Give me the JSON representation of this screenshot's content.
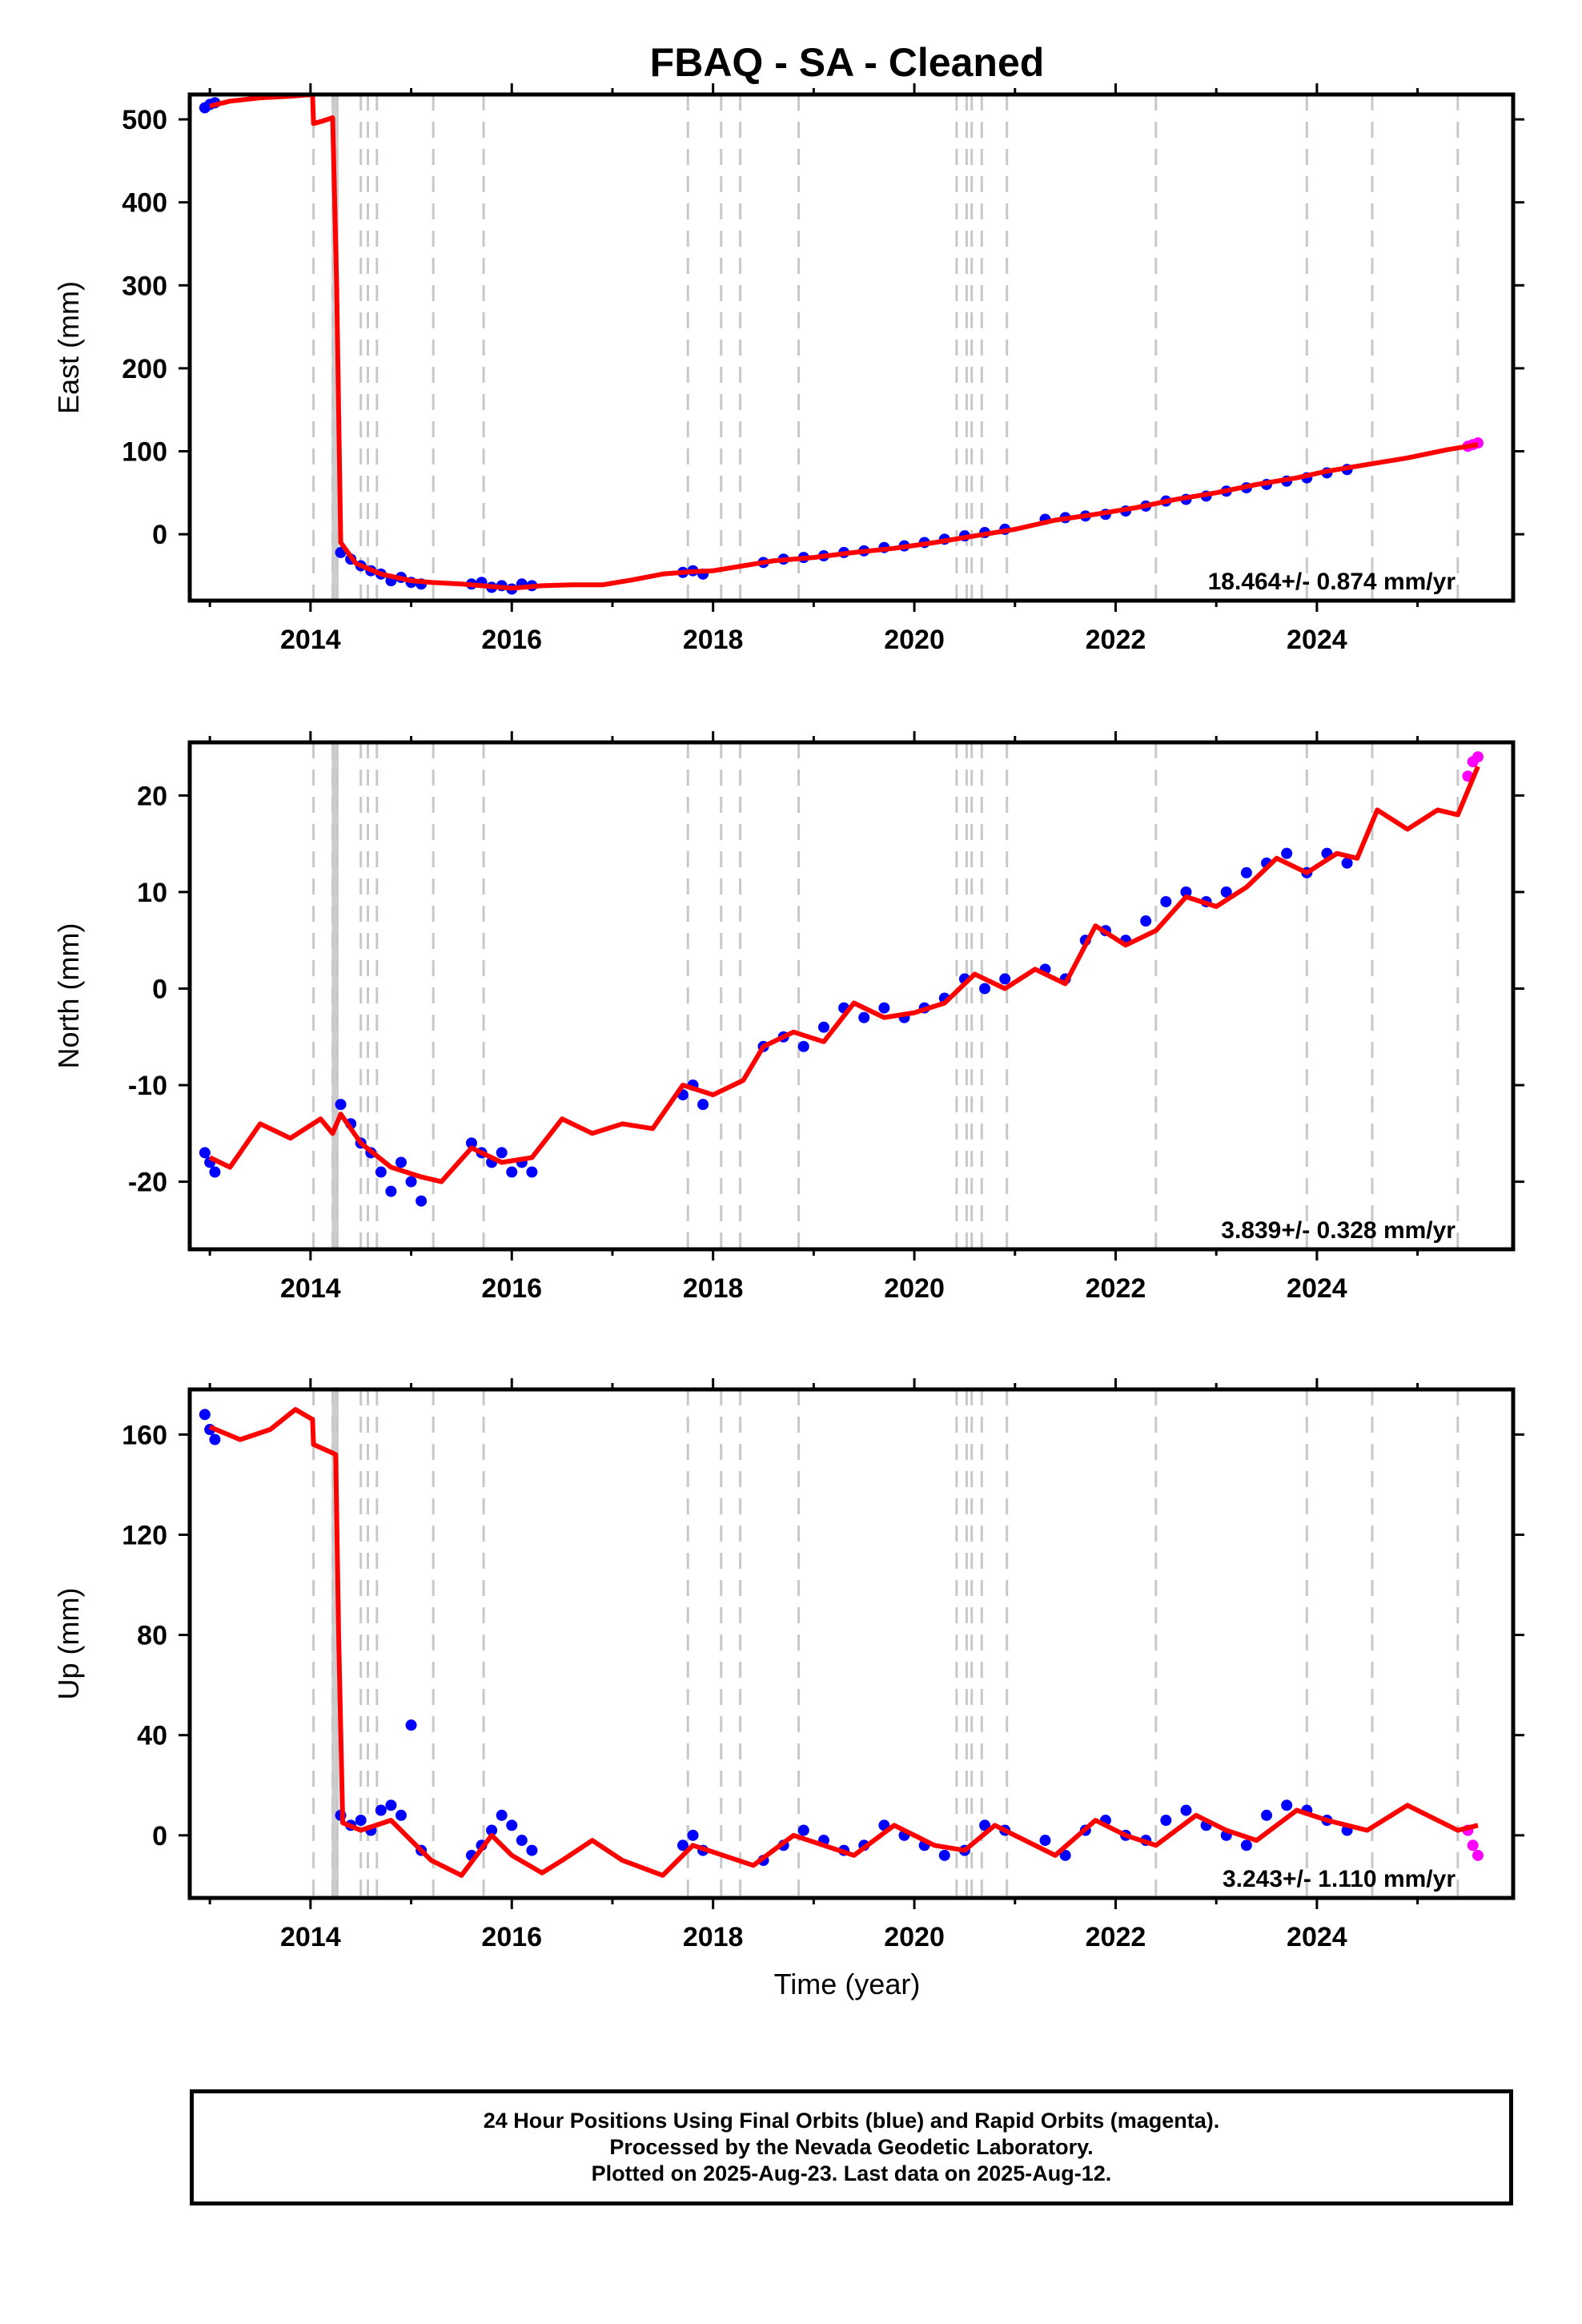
{
  "title": "FBAQ  - SA - Cleaned",
  "xlabel": "Time (year)",
  "footer": {
    "line1": "24 Hour Positions Using Final Orbits (blue) and Rapid Orbits (magenta).",
    "line2": "Processed by the Nevada Geodetic Laboratory.",
    "line3": "Plotted on 2025-Aug-23. Last data on 2025-Aug-12."
  },
  "colors": {
    "final": "#0000ff",
    "rapid": "#ff00ff",
    "model": "#ff0000",
    "events": "#c8c8c8"
  },
  "chart_data": [
    {
      "type": "scatter",
      "name": "east",
      "ylabel": "East (mm)",
      "xlim": [
        2012.8,
        2025.95
      ],
      "ylim": [
        -80,
        530
      ],
      "yticks": [
        0,
        100,
        200,
        300,
        400,
        500
      ],
      "xticks": [
        2014,
        2016,
        2018,
        2020,
        2022,
        2024
      ],
      "rate_label": "18.464+/- 0.874 mm/yr",
      "event_lines": [
        2014.03,
        2014.22,
        2014.26,
        2014.5,
        2014.57,
        2014.66,
        2015.22,
        2015.72,
        2017.75,
        2018.08,
        2018.27,
        2018.85,
        2020.42,
        2020.52,
        2020.57,
        2020.67,
        2020.92,
        2022.4,
        2023.9,
        2024.55,
        2025.4
      ],
      "model_curve": [
        [
          2013.0,
          516
        ],
        [
          2013.2,
          522
        ],
        [
          2013.5,
          526
        ],
        [
          2013.8,
          528
        ],
        [
          2014.02,
          530
        ],
        [
          2014.03,
          495
        ],
        [
          2014.12,
          498
        ],
        [
          2014.22,
          502
        ],
        [
          2014.26,
          300
        ],
        [
          2014.3,
          -10
        ],
        [
          2014.45,
          -35
        ],
        [
          2014.7,
          -48
        ],
        [
          2015.0,
          -56
        ],
        [
          2015.2,
          -58
        ],
        [
          2015.5,
          -60
        ],
        [
          2015.8,
          -63
        ],
        [
          2016.0,
          -65
        ],
        [
          2016.3,
          -62
        ],
        [
          2016.6,
          -61
        ],
        [
          2016.9,
          -61
        ],
        [
          2017.2,
          -55
        ],
        [
          2017.5,
          -48
        ],
        [
          2017.8,
          -45
        ],
        [
          2018.0,
          -44
        ],
        [
          2018.3,
          -38
        ],
        [
          2018.6,
          -32
        ],
        [
          2019.0,
          -28
        ],
        [
          2019.4,
          -22
        ],
        [
          2019.8,
          -17
        ],
        [
          2020.2,
          -10
        ],
        [
          2020.6,
          -2
        ],
        [
          2021.0,
          6
        ],
        [
          2021.4,
          17
        ],
        [
          2021.8,
          24
        ],
        [
          2022.2,
          32
        ],
        [
          2022.6,
          42
        ],
        [
          2023.0,
          50
        ],
        [
          2023.4,
          60
        ],
        [
          2023.8,
          68
        ],
        [
          2024.1,
          76
        ],
        [
          2024.5,
          84
        ],
        [
          2024.9,
          92
        ],
        [
          2025.3,
          102
        ],
        [
          2025.6,
          108
        ]
      ],
      "series": [
        {
          "name": "final",
          "x": [
            2012.95,
            2013.0,
            2013.05,
            2014.3,
            2014.4,
            2014.5,
            2014.6,
            2014.7,
            2014.8,
            2014.9,
            2015.0,
            2015.1,
            2015.6,
            2015.7,
            2015.8,
            2015.9,
            2016.0,
            2016.1,
            2016.2,
            2017.7,
            2017.8,
            2017.9,
            2018.5,
            2018.7,
            2018.9,
            2019.1,
            2019.3,
            2019.5,
            2019.7,
            2019.9,
            2020.1,
            2020.3,
            2020.5,
            2020.7,
            2020.9,
            2021.3,
            2021.5,
            2021.7,
            2021.9,
            2022.1,
            2022.3,
            2022.5,
            2022.7,
            2022.9,
            2023.1,
            2023.3,
            2023.5,
            2023.7,
            2023.9,
            2024.1,
            2024.3
          ],
          "y": [
            514,
            518,
            520,
            -22,
            -30,
            -38,
            -44,
            -48,
            -56,
            -52,
            -58,
            -60,
            -60,
            -58,
            -64,
            -62,
            -66,
            -60,
            -62,
            -46,
            -44,
            -48,
            -34,
            -30,
            -28,
            -26,
            -22,
            -20,
            -16,
            -14,
            -10,
            -6,
            -2,
            2,
            6,
            18,
            20,
            22,
            24,
            28,
            34,
            40,
            42,
            46,
            52,
            56,
            60,
            64,
            68,
            74,
            78
          ]
        },
        {
          "name": "rapid",
          "x": [
            2025.5,
            2025.55,
            2025.6
          ],
          "y": [
            106,
            108,
            110
          ]
        }
      ]
    },
    {
      "type": "scatter",
      "name": "north",
      "ylabel": "North (mm)",
      "xlim": [
        2012.8,
        2025.95
      ],
      "ylim": [
        -27,
        25.5
      ],
      "yticks": [
        -20,
        -10,
        0,
        10,
        20
      ],
      "xticks": [
        2014,
        2016,
        2018,
        2020,
        2022,
        2024
      ],
      "rate_label": "3.839+/- 0.328 mm/yr",
      "event_lines": [
        2014.03,
        2014.22,
        2014.26,
        2014.5,
        2014.57,
        2014.66,
        2015.22,
        2015.72,
        2017.75,
        2018.08,
        2018.27,
        2018.85,
        2020.42,
        2020.52,
        2020.57,
        2020.67,
        2020.92,
        2022.4,
        2023.9,
        2024.55,
        2025.4
      ],
      "model_curve": [
        [
          2013.0,
          -17.5
        ],
        [
          2013.2,
          -18.5
        ],
        [
          2013.5,
          -14
        ],
        [
          2013.8,
          -15.5
        ],
        [
          2014.1,
          -13.5
        ],
        [
          2014.22,
          -15
        ],
        [
          2014.3,
          -13
        ],
        [
          2014.5,
          -16
        ],
        [
          2014.8,
          -18.5
        ],
        [
          2015.1,
          -19.5
        ],
        [
          2015.3,
          -20
        ],
        [
          2015.6,
          -16.5
        ],
        [
          2015.9,
          -18
        ],
        [
          2016.2,
          -17.5
        ],
        [
          2016.5,
          -13.5
        ],
        [
          2016.8,
          -15
        ],
        [
          2017.1,
          -14
        ],
        [
          2017.4,
          -14.5
        ],
        [
          2017.7,
          -10
        ],
        [
          2018.0,
          -11
        ],
        [
          2018.3,
          -9.5
        ],
        [
          2018.5,
          -6
        ],
        [
          2018.8,
          -4.5
        ],
        [
          2019.1,
          -5.5
        ],
        [
          2019.4,
          -1.5
        ],
        [
          2019.7,
          -3
        ],
        [
          2020.0,
          -2.5
        ],
        [
          2020.3,
          -1.5
        ],
        [
          2020.6,
          1.5
        ],
        [
          2020.9,
          0
        ],
        [
          2021.2,
          2
        ],
        [
          2021.5,
          0.5
        ],
        [
          2021.8,
          6.5
        ],
        [
          2022.1,
          4.5
        ],
        [
          2022.4,
          6
        ],
        [
          2022.7,
          9.5
        ],
        [
          2023.0,
          8.5
        ],
        [
          2023.3,
          10.5
        ],
        [
          2023.6,
          13.5
        ],
        [
          2023.9,
          12
        ],
        [
          2024.2,
          14
        ],
        [
          2024.4,
          13.5
        ],
        [
          2024.6,
          18.5
        ],
        [
          2024.9,
          16.5
        ],
        [
          2025.2,
          18.5
        ],
        [
          2025.4,
          18
        ],
        [
          2025.6,
          23
        ]
      ],
      "series": [
        {
          "name": "final",
          "x": [
            2012.95,
            2013.0,
            2013.05,
            2014.3,
            2014.4,
            2014.5,
            2014.6,
            2014.7,
            2014.8,
            2014.9,
            2015.0,
            2015.1,
            2015.6,
            2015.7,
            2015.8,
            2015.9,
            2016.0,
            2016.1,
            2016.2,
            2017.7,
            2017.8,
            2017.9,
            2018.5,
            2018.7,
            2018.9,
            2019.1,
            2019.3,
            2019.5,
            2019.7,
            2019.9,
            2020.1,
            2020.3,
            2020.5,
            2020.7,
            2020.9,
            2021.3,
            2021.5,
            2021.7,
            2021.9,
            2022.1,
            2022.3,
            2022.5,
            2022.7,
            2022.9,
            2023.1,
            2023.3,
            2023.5,
            2023.7,
            2023.9,
            2024.1,
            2024.3
          ],
          "y": [
            -17,
            -18,
            -19,
            -12,
            -14,
            -16,
            -17,
            -19,
            -21,
            -18,
            -20,
            -22,
            -16,
            -17,
            -18,
            -17,
            -19,
            -18,
            -19,
            -11,
            -10,
            -12,
            -6,
            -5,
            -6,
            -4,
            -2,
            -3,
            -2,
            -3,
            -2,
            -1,
            1,
            0,
            1,
            2,
            1,
            5,
            6,
            5,
            7,
            9,
            10,
            9,
            10,
            12,
            13,
            14,
            12,
            14,
            13
          ]
        },
        {
          "name": "rapid",
          "x": [
            2025.5,
            2025.55,
            2025.6
          ],
          "y": [
            22,
            23.5,
            24
          ]
        }
      ]
    },
    {
      "type": "scatter",
      "name": "up",
      "ylabel": "Up (mm)",
      "xlim": [
        2012.8,
        2025.95
      ],
      "ylim": [
        -25,
        178
      ],
      "yticks": [
        0,
        40,
        80,
        120,
        160
      ],
      "xticks": [
        2014,
        2016,
        2018,
        2020,
        2022,
        2024
      ],
      "rate_label": "3.243+/- 1.110 mm/yr",
      "event_lines": [
        2014.03,
        2014.22,
        2014.26,
        2014.5,
        2014.57,
        2014.66,
        2015.22,
        2015.72,
        2017.75,
        2018.08,
        2018.27,
        2018.85,
        2020.42,
        2020.52,
        2020.57,
        2020.67,
        2020.92,
        2022.4,
        2023.9,
        2024.55,
        2025.4
      ],
      "model_curve": [
        [
          2013.0,
          163
        ],
        [
          2013.3,
          158
        ],
        [
          2013.6,
          162
        ],
        [
          2013.85,
          170
        ],
        [
          2014.02,
          166
        ],
        [
          2014.03,
          156
        ],
        [
          2014.2,
          153
        ],
        [
          2014.25,
          152
        ],
        [
          2014.28,
          80
        ],
        [
          2014.32,
          5
        ],
        [
          2014.5,
          2
        ],
        [
          2014.8,
          6
        ],
        [
          2015.0,
          -2
        ],
        [
          2015.2,
          -10
        ],
        [
          2015.5,
          -16
        ],
        [
          2015.8,
          0
        ],
        [
          2016.0,
          -8
        ],
        [
          2016.3,
          -15
        ],
        [
          2016.5,
          -10
        ],
        [
          2016.8,
          -2
        ],
        [
          2017.1,
          -10
        ],
        [
          2017.5,
          -16
        ],
        [
          2017.8,
          -4
        ],
        [
          2018.1,
          -8
        ],
        [
          2018.4,
          -12
        ],
        [
          2018.8,
          0
        ],
        [
          2019.1,
          -4
        ],
        [
          2019.4,
          -8
        ],
        [
          2019.8,
          4
        ],
        [
          2020.2,
          -4
        ],
        [
          2020.5,
          -6
        ],
        [
          2020.8,
          4
        ],
        [
          2021.1,
          -2
        ],
        [
          2021.4,
          -8
        ],
        [
          2021.8,
          6
        ],
        [
          2022.1,
          0
        ],
        [
          2022.4,
          -4
        ],
        [
          2022.8,
          8
        ],
        [
          2023.1,
          2
        ],
        [
          2023.4,
          -2
        ],
        [
          2023.8,
          10
        ],
        [
          2024.1,
          6
        ],
        [
          2024.5,
          2
        ],
        [
          2024.9,
          12
        ],
        [
          2025.2,
          6
        ],
        [
          2025.4,
          2
        ],
        [
          2025.6,
          4
        ]
      ],
      "series": [
        {
          "name": "final",
          "x": [
            2012.95,
            2013.0,
            2013.05,
            2014.3,
            2014.4,
            2014.5,
            2014.6,
            2014.7,
            2014.8,
            2014.9,
            2015.0,
            2015.1,
            2015.6,
            2015.7,
            2015.8,
            2015.9,
            2016.0,
            2016.1,
            2016.2,
            2017.7,
            2017.8,
            2017.9,
            2018.5,
            2018.7,
            2018.9,
            2019.1,
            2019.3,
            2019.5,
            2019.7,
            2019.9,
            2020.1,
            2020.3,
            2020.5,
            2020.7,
            2020.9,
            2021.3,
            2021.5,
            2021.7,
            2021.9,
            2022.1,
            2022.3,
            2022.5,
            2022.7,
            2022.9,
            2023.1,
            2023.3,
            2023.5,
            2023.7,
            2023.9,
            2024.1,
            2024.3
          ],
          "y": [
            168,
            162,
            158,
            8,
            4,
            6,
            2,
            10,
            12,
            8,
            44,
            -6,
            -8,
            -4,
            2,
            8,
            4,
            -2,
            -6,
            -4,
            0,
            -6,
            -10,
            -4,
            2,
            -2,
            -6,
            -4,
            4,
            0,
            -4,
            -8,
            -6,
            4,
            2,
            -2,
            -8,
            2,
            6,
            0,
            -2,
            6,
            10,
            4,
            0,
            -4,
            8,
            12,
            10,
            6,
            2
          ]
        },
        {
          "name": "rapid",
          "x": [
            2025.5,
            2025.55,
            2025.6
          ],
          "y": [
            2,
            -4,
            -8
          ]
        }
      ]
    }
  ]
}
